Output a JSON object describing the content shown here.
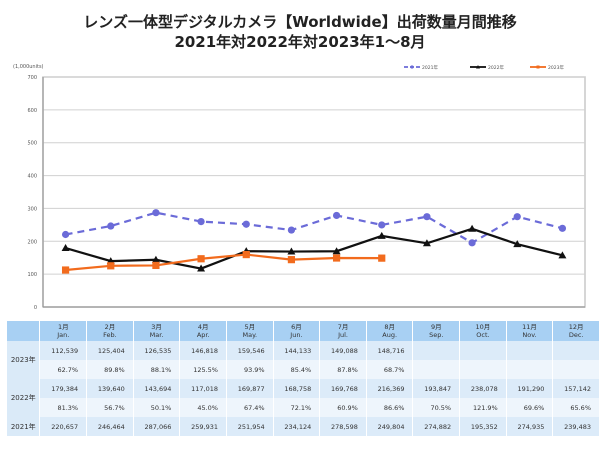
{
  "title_line1": "レンズ一体型デジタルカメラ【Worldwide】出荷数量月間推移",
  "title_line2": "2021年対2022年対2023年1～8月",
  "chart_data": {
    "type": "line",
    "title": "レンズ一体型デジタルカメラ【Worldwide】出荷数量月間推移 2021年対2022年対2023年1～8月",
    "ylabel": "(1,000units)",
    "xlabel": "",
    "ylim": [
      0,
      700
    ],
    "yticks": [
      0,
      100,
      200,
      300,
      400,
      500,
      600,
      700
    ],
    "ytick_labels": [
      "0",
      "100",
      "200",
      "300",
      "400",
      "500",
      "600",
      "700"
    ],
    "grid": true,
    "legend_position": "top-right",
    "categories": [
      "1月",
      "2月",
      "3月",
      "4月",
      "5月",
      "6月",
      "7月",
      "8月",
      "9月",
      "10月",
      "11月",
      "12月"
    ],
    "series": [
      {
        "name": "2021年",
        "color": "#6b6bd8",
        "style": "dashed",
        "marker": "circle",
        "values": [
          220.657,
          246.464,
          287.066,
          259.931,
          251.954,
          234.124,
          278.598,
          249.804,
          274.882,
          195.352,
          274.935,
          239.483
        ]
      },
      {
        "name": "2022年",
        "color": "#111111",
        "style": "solid",
        "marker": "triangle",
        "values": [
          179.384,
          139.64,
          143.694,
          117.018,
          169.877,
          168.758,
          169.768,
          216.369,
          193.847,
          238.078,
          191.29,
          157.142
        ]
      },
      {
        "name": "2023年",
        "color": "#f26b1d",
        "style": "solid",
        "marker": "square",
        "values": [
          112.539,
          125.404,
          126.535,
          146.818,
          159.546,
          144.133,
          149.088,
          148.716
        ]
      }
    ]
  },
  "table": {
    "months": [
      {
        "jp": "1月",
        "en": "Jan."
      },
      {
        "jp": "2月",
        "en": "Feb."
      },
      {
        "jp": "3月",
        "en": "Mar."
      },
      {
        "jp": "4月",
        "en": "Apr."
      },
      {
        "jp": "5月",
        "en": "May."
      },
      {
        "jp": "6月",
        "en": "Jun."
      },
      {
        "jp": "7月",
        "en": "Jul."
      },
      {
        "jp": "8月",
        "en": "Aug."
      },
      {
        "jp": "9月",
        "en": "Sep."
      },
      {
        "jp": "10月",
        "en": "Oct."
      },
      {
        "jp": "11月",
        "en": "Nov."
      },
      {
        "jp": "12月",
        "en": "Dec."
      }
    ],
    "rows": [
      {
        "label": "2023年",
        "values": [
          "112,539",
          "125,404",
          "126,535",
          "146,818",
          "159,546",
          "144,133",
          "149,088",
          "148,716",
          "",
          "",
          "",
          ""
        ],
        "pct": [
          "62.7%",
          "89.8%",
          "88.1%",
          "125.5%",
          "93.9%",
          "85.4%",
          "87.8%",
          "68.7%",
          "",
          "",
          "",
          ""
        ]
      },
      {
        "label": "2022年",
        "values": [
          "179,384",
          "139,640",
          "143,694",
          "117,018",
          "169,877",
          "168,758",
          "169,768",
          "216,369",
          "193,847",
          "238,078",
          "191,290",
          "157,142"
        ],
        "pct": [
          "81.3%",
          "56.7%",
          "50.1%",
          "45.0%",
          "67.4%",
          "72.1%",
          "60.9%",
          "86.6%",
          "70.5%",
          "121.9%",
          "69.6%",
          "65.6%"
        ]
      },
      {
        "label": "2021年",
        "values": [
          "220,657",
          "246,464",
          "287,066",
          "259,931",
          "251,954",
          "234,124",
          "278,598",
          "249,804",
          "274,882",
          "195,352",
          "274,935",
          "239,483"
        ]
      }
    ]
  }
}
